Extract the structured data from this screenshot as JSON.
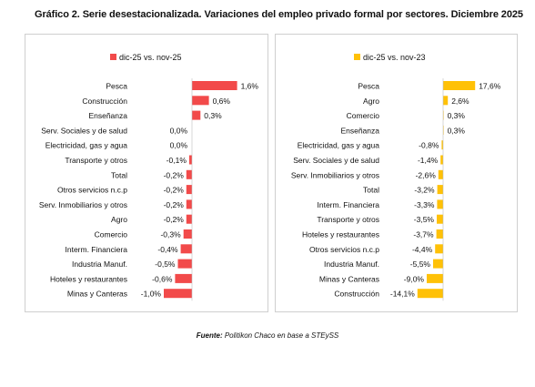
{
  "title": "Gráfico 2. Serie desestacionalizada. Variaciones del empleo privado formal por sectores. Diciembre 2025",
  "source_label": "Fuente:",
  "source_text": " Politikon Chaco en base a STEySS",
  "colors": {
    "left": "#f24a4a",
    "right": "#ffc107"
  },
  "chart_data": [
    {
      "type": "bar",
      "orientation": "horizontal",
      "series_name": "dic-25 vs. nov-25",
      "legend": "top",
      "value_suffix": "%",
      "categories": [
        "Pesca",
        "Construcción",
        "Enseñanza",
        "Serv. Sociales y de salud",
        "Electricidad, gas y agua",
        "Transporte y otros",
        "Total",
        "Otros servicios n.c.p",
        "Serv. Inmobiliarios y otros",
        "Agro",
        "Comercio",
        "Interm. Financiera",
        "Industria Manuf.",
        "Hoteles y restaurantes",
        "Minas y Canteras"
      ],
      "values": [
        1.6,
        0.6,
        0.3,
        0.0,
        0.0,
        -0.1,
        -0.2,
        -0.2,
        -0.2,
        -0.2,
        -0.3,
        -0.4,
        -0.5,
        -0.6,
        -1.0
      ],
      "labels": [
        "1,6%",
        "0,6%",
        "0,3%",
        "0,0%",
        "0,0%",
        "-0,1%",
        "-0,2%",
        "-0,2%",
        "-0,2%",
        "-0,2%",
        "-0,3%",
        "-0,4%",
        "-0,5%",
        "-0,6%",
        "-1,0%"
      ]
    },
    {
      "type": "bar",
      "orientation": "horizontal",
      "series_name": "dic-25 vs. nov-23",
      "legend": "top",
      "value_suffix": "%",
      "categories": [
        "Pesca",
        "Agro",
        "Comercio",
        "Enseñanza",
        "Electricidad, gas y agua",
        "Serv. Sociales y de salud",
        "Serv. Inmobiliarios y otros",
        "Total",
        "Interm. Financiera",
        "Transporte y otros",
        "Hoteles y restaurantes",
        "Otros servicios n.c.p",
        "Industria Manuf.",
        "Minas y Canteras",
        "Construcción"
      ],
      "values": [
        17.6,
        2.6,
        0.3,
        0.3,
        -0.8,
        -1.4,
        -2.6,
        -3.2,
        -3.3,
        -3.5,
        -3.7,
        -4.4,
        -5.5,
        -9.0,
        -14.1
      ],
      "labels": [
        "17,6%",
        "2,6%",
        "0,3%",
        "0,3%",
        "-0,8%",
        "-1,4%",
        "-2,6%",
        "-3,2%",
        "-3,3%",
        "-3,5%",
        "-3,7%",
        "-4,4%",
        "-5,5%",
        "-9,0%",
        "-14,1%"
      ]
    }
  ]
}
